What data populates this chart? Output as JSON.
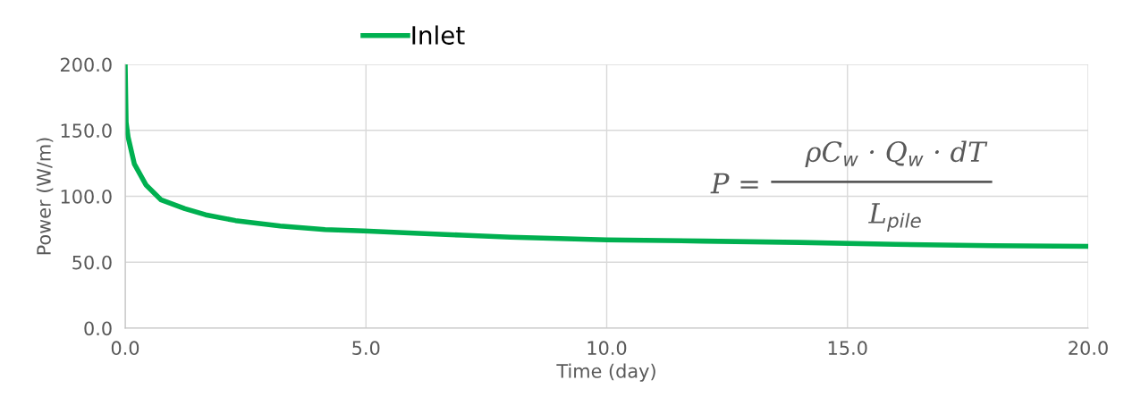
{
  "chart_data": {
    "type": "line",
    "xlabel": "Time (day)",
    "ylabel": "Power (W/m)",
    "x": [
      0,
      0.02,
      0.06,
      0.19,
      0.43,
      0.74,
      1.24,
      1.67,
      2.29,
      3.22,
      4.15,
      4.95,
      6,
      7,
      8,
      9,
      10,
      12,
      14,
      16,
      18,
      20
    ],
    "series": [
      {
        "name": "Inlet",
        "color": "#00b050",
        "values": [
          200,
          156,
          145,
          124.5,
          108.7,
          97.4,
          90.6,
          86,
          81.6,
          77.5,
          74.8,
          73.7,
          72,
          70.5,
          69,
          68,
          67,
          66,
          65,
          63.5,
          62.5,
          62
        ]
      }
    ],
    "xlim": [
      0,
      20
    ],
    "xticks": [
      {
        "value": 0,
        "label": "0.0"
      },
      {
        "value": 5,
        "label": "5.0"
      },
      {
        "value": 10,
        "label": "10.0"
      },
      {
        "value": 15,
        "label": "15.0"
      },
      {
        "value": 20,
        "label": "20.0"
      }
    ],
    "ylim": [
      0,
      200
    ],
    "yticks": [
      {
        "value": 0,
        "label": "0.0"
      },
      {
        "value": 50,
        "label": "50.0"
      },
      {
        "value": 100,
        "label": "100.0"
      },
      {
        "value": 150,
        "label": "150.0"
      },
      {
        "value": 200,
        "label": "200.0"
      }
    ],
    "grid": true,
    "legend": "top",
    "marker": "none",
    "line_style": "solid",
    "annotations": [
      "P =",
      "ρC$_{w}$ · Q$_{w}$ · dT",
      "L$_{pile}$"
    ]
  }
}
